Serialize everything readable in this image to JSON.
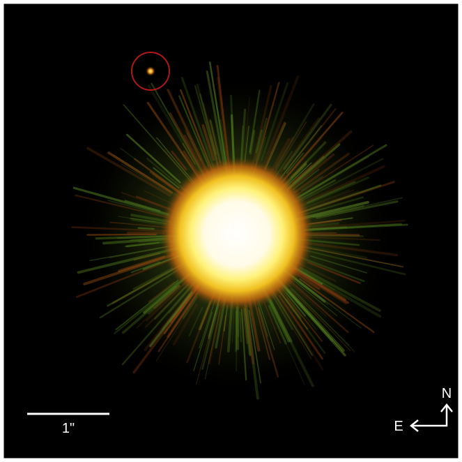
{
  "scale_bar": {
    "label": "1\""
  },
  "compass": {
    "north": "N",
    "east": "E"
  }
}
